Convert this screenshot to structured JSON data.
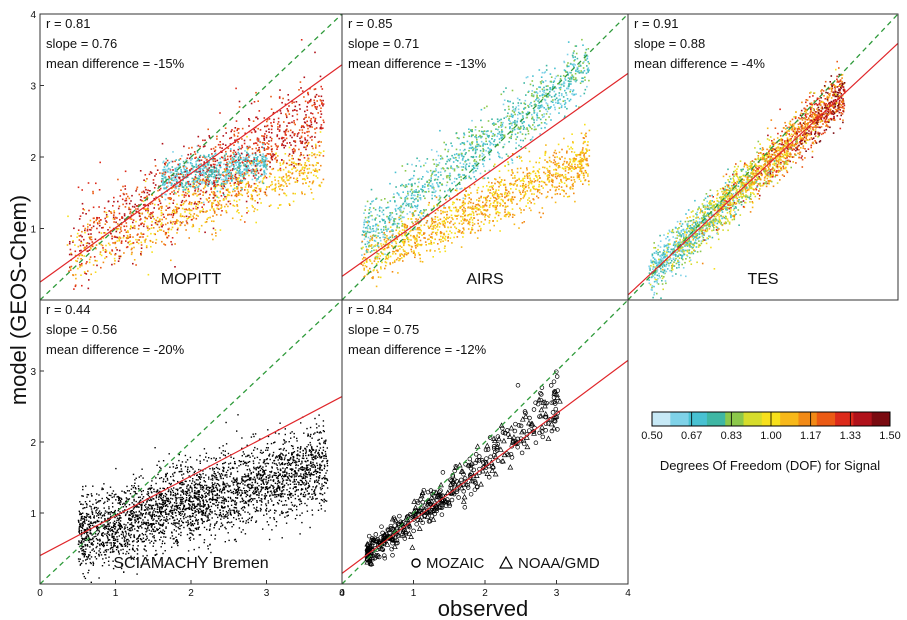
{
  "figure": {
    "ylabel": "model (GEOS-Chem)",
    "xlabel": "observed"
  },
  "colorbar": {
    "label": "Degrees Of Freedom (DOF) for Signal",
    "range": [
      0.5,
      1.5
    ],
    "ticks": [
      "0.50",
      "0.67",
      "0.83",
      "1.00",
      "1.17",
      "1.33",
      "1.50"
    ],
    "colors": [
      "#c7e9f6",
      "#7fd2e8",
      "#48c1d2",
      "#3fb7a4",
      "#8cc84b",
      "#d6dc2c",
      "#f7e01c",
      "#f7b81a",
      "#f28a16",
      "#eb5a14",
      "#dc2a1a",
      "#b0111a",
      "#7a0a10"
    ]
  },
  "chart_data": [
    {
      "type": "scatter",
      "title": "MOPITT",
      "stats": [
        "r = 0.81",
        "slope = 0.76",
        "mean difference = -15%"
      ],
      "xlim": [
        0,
        4
      ],
      "ylim": [
        0,
        4
      ],
      "x_ticks": [],
      "y_ticks": [
        "1",
        "2",
        "3",
        "4"
      ],
      "regression": {
        "slope": 0.76,
        "intercept": 0.25
      },
      "one_to_one": true,
      "color_by": "DOF"
    },
    {
      "type": "scatter",
      "title": "AIRS",
      "stats": [
        "r = 0.85",
        "slope = 0.71",
        "mean difference = -13%"
      ],
      "xlim": [
        0,
        4
      ],
      "ylim": [
        0,
        4
      ],
      "x_ticks": [],
      "y_ticks": [],
      "regression": {
        "slope": 0.71,
        "intercept": 0.33
      },
      "one_to_one": true,
      "color_by": "DOF"
    },
    {
      "type": "scatter",
      "title": "TES",
      "stats": [
        "r = 0.91",
        "slope = 0.88",
        "mean difference = -4%"
      ],
      "xlim": [
        0,
        4
      ],
      "ylim": [
        0,
        4
      ],
      "x_ticks": [],
      "y_ticks": [],
      "regression": {
        "slope": 0.88,
        "intercept": 0.07
      },
      "one_to_one": true,
      "color_by": "DOF"
    },
    {
      "type": "scatter",
      "title": "SCIAMACHY Bremen",
      "stats": [
        "r = 0.44",
        "slope = 0.56",
        "mean difference = -20%"
      ],
      "xlim": [
        0,
        4
      ],
      "ylim": [
        0,
        4
      ],
      "x_ticks": [
        "0",
        "1",
        "2",
        "3",
        "4"
      ],
      "y_ticks": [
        "1",
        "2",
        "3"
      ],
      "regression": {
        "slope": 0.56,
        "intercept": 0.4
      },
      "one_to_one": true,
      "color_by": "none"
    },
    {
      "type": "scatter",
      "title": "",
      "stats": [
        "r = 0.84",
        "slope = 0.75",
        "mean difference = -12%"
      ],
      "legend": [
        "MOZAIC",
        "NOAA/GMD"
      ],
      "xlim": [
        0,
        4
      ],
      "ylim": [
        0,
        4
      ],
      "x_ticks": [
        "0",
        "1",
        "2",
        "3",
        "4"
      ],
      "y_ticks": [],
      "regression": {
        "slope": 0.75,
        "intercept": 0.15
      },
      "one_to_one": true,
      "color_by": "none"
    }
  ]
}
